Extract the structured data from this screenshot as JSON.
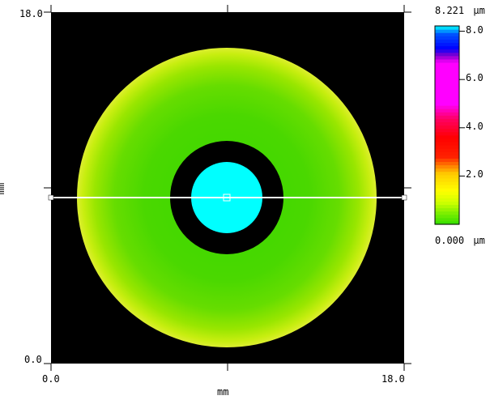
{
  "chart_data": {
    "type": "heatmap",
    "subtype": "surface height map",
    "x_axis": {
      "label": "mm",
      "ticks": [
        "0.0",
        "18.0"
      ],
      "range": [
        0.0,
        18.0
      ]
    },
    "y_axis": {
      "label": "mm",
      "ticks": [
        "0.0",
        "18.0"
      ],
      "range": [
        0.0,
        18.0
      ]
    },
    "colorbar": {
      "max_label": "8.221",
      "min_label": "0.000",
      "unit": "µm",
      "range": [
        0.0,
        8.221
      ],
      "ticks": [
        "8.0",
        "6.0",
        "4.0",
        "2.0"
      ],
      "tick_values": [
        8.0,
        6.0,
        4.0,
        2.0
      ],
      "stops": [
        {
          "value": 0.0,
          "color": "#33dd00"
        },
        {
          "value": 0.45,
          "color": "#77ee00"
        },
        {
          "value": 0.9,
          "color": "#ccff00"
        },
        {
          "value": 1.4,
          "color": "#ffff00"
        },
        {
          "value": 2.1,
          "color": "#ffcc00"
        },
        {
          "value": 2.4,
          "color": "#ff8800"
        },
        {
          "value": 2.8,
          "color": "#ff2200"
        },
        {
          "value": 3.6,
          "color": "#ff0000"
        },
        {
          "value": 4.4,
          "color": "#ff0066"
        },
        {
          "value": 5.0,
          "color": "#ff00ff"
        },
        {
          "value": 6.7,
          "color": "#ff00ff"
        },
        {
          "value": 7.0,
          "color": "#8800cc"
        },
        {
          "value": 7.3,
          "color": "#0000ff"
        },
        {
          "value": 7.9,
          "color": "#0055ff"
        },
        {
          "value": 8.221,
          "color": "#00ffff"
        }
      ]
    },
    "features": [
      {
        "name": "background",
        "color": "#000000"
      },
      {
        "name": "outer disk",
        "center_mm": [
          9.0,
          9.0
        ],
        "radius_mm": 7.6,
        "height_um_range": [
          0.2,
          1.8
        ],
        "edge_color": "#ddee22",
        "face_color": "#44dd00"
      },
      {
        "name": "annular gap",
        "center_mm": [
          9.0,
          9.0
        ],
        "radius_mm": 2.9,
        "color": "#000000"
      },
      {
        "name": "central spot",
        "center_mm": [
          9.0,
          9.0
        ],
        "radius_mm": 1.8,
        "height_um": 8.221,
        "color": "#00ffff"
      }
    ],
    "profile_line": {
      "from_mm": [
        0.0,
        9.0
      ],
      "to_mm": [
        18.0,
        9.0
      ],
      "color": "#ffffff",
      "marker_mm": [
        9.0,
        9.0
      ]
    },
    "grid": false
  }
}
